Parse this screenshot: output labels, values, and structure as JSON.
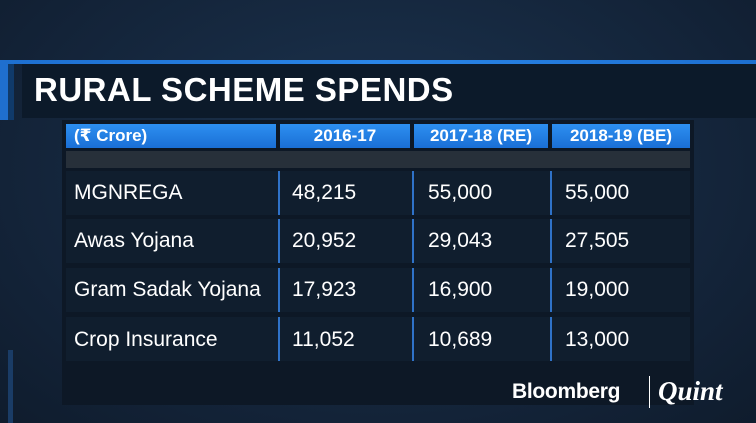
{
  "title": "RURAL SCHEME SPENDS",
  "table": {
    "headers": [
      "(₹ Crore)",
      "2016-17",
      "2017-18 (RE)",
      "2018-19 (BE)"
    ],
    "rows": [
      [
        "MGNREGA",
        "48,215",
        "55,000",
        "55,000"
      ],
      [
        "Awas Yojana",
        "20,952",
        "29,043",
        "27,505"
      ],
      [
        "Gram Sadak Yojana",
        "17,923",
        "16,900",
        "19,000"
      ],
      [
        "Crop Insurance",
        "11,052",
        "10,689",
        "13,000"
      ]
    ]
  },
  "logo": {
    "brand": "Bloomberg",
    "partner": "Quint"
  },
  "colors": {
    "header_blue": "#1f78e0",
    "accent_blue": "#2a86e8",
    "background": "#16283e"
  }
}
